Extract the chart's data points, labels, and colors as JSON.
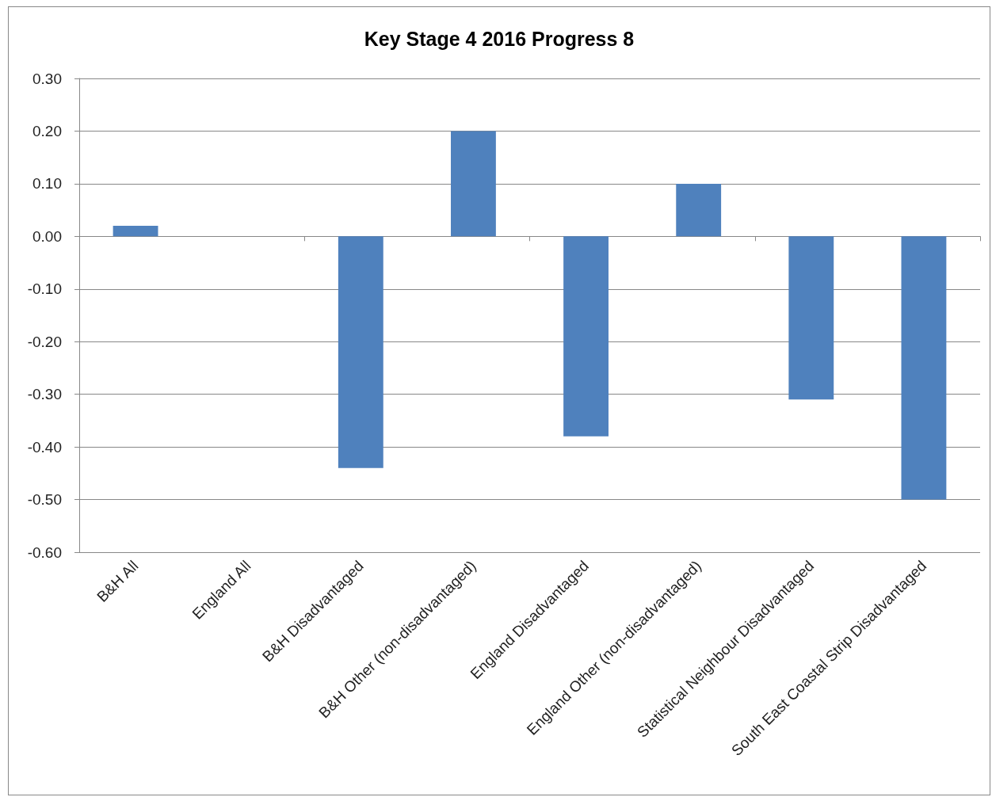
{
  "chart_data": {
    "type": "bar",
    "title": "Key Stage 4 2016 Progress 8",
    "categories": [
      "B&H All",
      "England All",
      "B&H Disadvantaged",
      "B&H Other (non-disadvantaged)",
      "England Disadvantaged",
      "England Other (non-disadvantaged)",
      "Statistical Neighbour Disadvantaged",
      "South East Coastal Strip Disadvantaged"
    ],
    "values": [
      0.02,
      0,
      -0.44,
      0.2,
      -0.38,
      0.1,
      -0.31,
      -0.5
    ],
    "color": "#4f81bd",
    "ylim": [
      -0.6,
      0.3
    ],
    "yticks": [
      {
        "value": -0.6,
        "label": "-0.60"
      },
      {
        "value": -0.5,
        "label": "-0.50"
      },
      {
        "value": -0.4,
        "label": "-0.40"
      },
      {
        "value": -0.3,
        "label": "-0.30"
      },
      {
        "value": -0.2,
        "label": "-0.20"
      },
      {
        "value": -0.1,
        "label": "-0.10"
      },
      {
        "value": 0,
        "label": "0.00"
      },
      {
        "value": 0.1,
        "label": "0.10"
      },
      {
        "value": 0.2,
        "label": "0.20"
      },
      {
        "value": 0.3,
        "label": "0.30"
      }
    ],
    "grid": "y"
  }
}
